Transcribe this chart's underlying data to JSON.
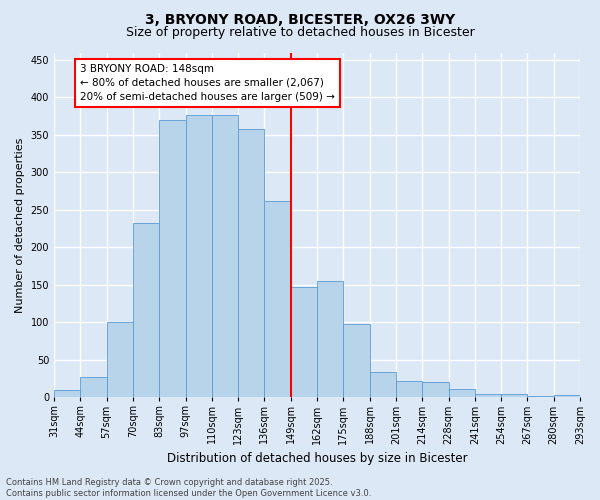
{
  "title": "3, BRYONY ROAD, BICESTER, OX26 3WY",
  "subtitle": "Size of property relative to detached houses in Bicester",
  "xlabel": "Distribution of detached houses by size in Bicester",
  "ylabel": "Number of detached properties",
  "bin_edges_labels": [
    "31sqm",
    "44sqm",
    "57sqm",
    "70sqm",
    "83sqm",
    "97sqm",
    "110sqm",
    "123sqm",
    "136sqm",
    "149sqm",
    "162sqm",
    "175sqm",
    "188sqm",
    "201sqm",
    "214sqm",
    "228sqm",
    "241sqm",
    "254sqm",
    "267sqm",
    "280sqm",
    "293sqm"
  ],
  "bar_values": [
    10,
    27,
    101,
    232,
    370,
    376,
    376,
    358,
    262,
    147,
    155,
    98,
    34,
    22,
    21,
    11,
    5,
    5,
    2,
    3
  ],
  "bar_color": "#b8d4ea",
  "bar_edge_color": "#5b9bd5",
  "vline_color": "red",
  "vline_x_index": 9,
  "annotation_text": "3 BRYONY ROAD: 148sqm\n← 80% of detached houses are smaller (2,067)\n20% of semi-detached houses are larger (509) →",
  "annotation_box_color": "white",
  "annotation_box_edge_color": "red",
  "ylim": [
    0,
    460
  ],
  "yticks": [
    0,
    50,
    100,
    150,
    200,
    250,
    300,
    350,
    400,
    450
  ],
  "background_color": "#dce8f5",
  "grid_color": "white",
  "footer": "Contains HM Land Registry data © Crown copyright and database right 2025.\nContains public sector information licensed under the Open Government Licence v3.0.",
  "title_fontsize": 10,
  "subtitle_fontsize": 9,
  "xlabel_fontsize": 8.5,
  "ylabel_fontsize": 8,
  "tick_fontsize": 7,
  "annotation_fontsize": 7.5,
  "footer_fontsize": 6
}
